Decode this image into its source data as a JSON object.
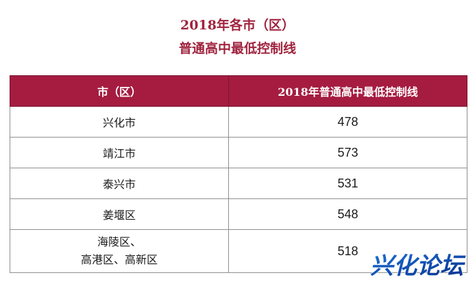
{
  "title": {
    "line1": "2018年各市（区）",
    "line2": "普通高中最低控制线"
  },
  "table": {
    "headers": [
      "市（区）",
      "2018年普通高中最低控制线"
    ],
    "rows": [
      {
        "region_lines": [
          "兴化市"
        ],
        "score": "478"
      },
      {
        "region_lines": [
          "靖江市"
        ],
        "score": "573"
      },
      {
        "region_lines": [
          "泰兴市"
        ],
        "score": "531"
      },
      {
        "region_lines": [
          "姜堰区"
        ],
        "score": "548"
      },
      {
        "region_lines": [
          "海陵区、",
          "高港区、高新区"
        ],
        "score": "518"
      }
    ]
  },
  "watermark": {
    "text": "兴化论坛",
    "colors": [
      "#1a6fd6",
      "#0a2f8a"
    ]
  }
}
